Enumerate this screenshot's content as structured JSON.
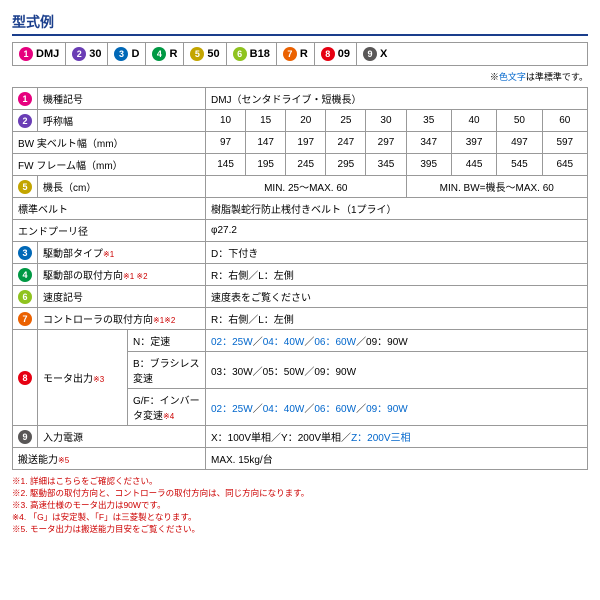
{
  "title": "型式例",
  "legend_note_prefix": "※",
  "legend_note_blue": "色文字",
  "legend_note_suffix": "は準標準です。",
  "badges": {
    "colors": {
      "1": "#e6007e",
      "2": "#6a3db5",
      "3": "#0068b7",
      "4": "#009944",
      "5": "#c3a500",
      "6": "#8fc31f",
      "7": "#eb6100",
      "8": "#e60012",
      "9": "#595757"
    }
  },
  "model": [
    {
      "n": "1",
      "t": "DMJ"
    },
    {
      "n": "2",
      "t": "30"
    },
    {
      "n": "3",
      "t": "D"
    },
    {
      "n": "4",
      "t": "R"
    },
    {
      "n": "5",
      "t": "50"
    },
    {
      "n": "6",
      "t": "B18"
    },
    {
      "n": "7",
      "t": "R"
    },
    {
      "n": "8",
      "t": "09"
    },
    {
      "n": "9",
      "t": "X"
    }
  ],
  "rows": {
    "r1": {
      "n": "1",
      "label": "機種記号",
      "val": "DMJ（センタドライブ・短機長）"
    },
    "r2": {
      "n": "2",
      "label": "呼称幅",
      "vals": [
        "10",
        "15",
        "20",
        "25",
        "30",
        "35",
        "40",
        "50",
        "60"
      ]
    },
    "r3": {
      "label": "BW 実ベルト幅（mm）",
      "vals": [
        "97",
        "147",
        "197",
        "247",
        "297",
        "347",
        "397",
        "497",
        "597"
      ]
    },
    "r4": {
      "label": "FW フレーム幅（mm）",
      "vals": [
        "145",
        "195",
        "245",
        "295",
        "345",
        "395",
        "445",
        "545",
        "645"
      ]
    },
    "r5": {
      "n": "5",
      "label": "機長（cm）",
      "val1": "MIN. 25～MAX. 60",
      "val2": "MIN. BW=機長～MAX. 60"
    },
    "r6": {
      "label": "標準ベルト",
      "val": "樹脂製蛇行防止桟付きベルト（1プライ）"
    },
    "r7": {
      "label": "エンドプーリ径",
      "val": "φ27.2"
    },
    "r8": {
      "n": "3",
      "label": "駆動部タイプ",
      "note": "※1",
      "val": "D：下付き"
    },
    "r9": {
      "n": "4",
      "label": "駆動部の取付方向",
      "note": "※1 ※2",
      "val": "R：右側／L：左側"
    },
    "r10": {
      "n": "6",
      "label": "速度記号",
      "val": "速度表をご覧ください"
    },
    "r11": {
      "n": "7",
      "label": "コントローラの取付方向",
      "note": "※1※2",
      "val": "R：右側／L：左側"
    },
    "r12": {
      "n": "8",
      "label": "モータ出力",
      "note": "※3",
      "sub": [
        {
          "k": "N：定速",
          "v": [
            [
              "02：25W",
              1
            ],
            [
              "／",
              0
            ],
            [
              "04：40W",
              1
            ],
            [
              "／",
              0
            ],
            [
              "06：60W",
              1
            ],
            [
              "／09：90W",
              0
            ]
          ]
        },
        {
          "k": "B：ブラシレス変速",
          "v": [
            [
              "03：30W／05：50W／09：90W",
              0
            ]
          ]
        },
        {
          "k": "G/F：インバータ変速",
          "kn": "※4",
          "v": [
            [
              "02：25W",
              1
            ],
            [
              "／",
              0
            ],
            [
              "04：40W",
              1
            ],
            [
              "／",
              0
            ],
            [
              "06：60W",
              1
            ],
            [
              "／",
              0
            ],
            [
              "09：90W",
              1
            ]
          ]
        }
      ]
    },
    "r13": {
      "n": "9",
      "label": "入力電源",
      "val": [
        [
          "X：100V単相／Y：200V単相／",
          0
        ],
        [
          "Z：200V三相",
          1
        ]
      ]
    },
    "r14": {
      "label": "搬送能力",
      "note": "※5",
      "val": "MAX. 15kg/台"
    }
  },
  "footnotes": [
    "※1. 詳細はこちらをご確認ください。",
    "※2. 駆動部の取付方向と、コントローラの取付方向は、同じ方向になります。",
    "※3. 高速仕様のモータ出力は90Wです。",
    "※4. 「G」は安定製、「F」は三菱製となります。",
    "※5. モータ出力は搬送能力目安をご覧ください。"
  ]
}
